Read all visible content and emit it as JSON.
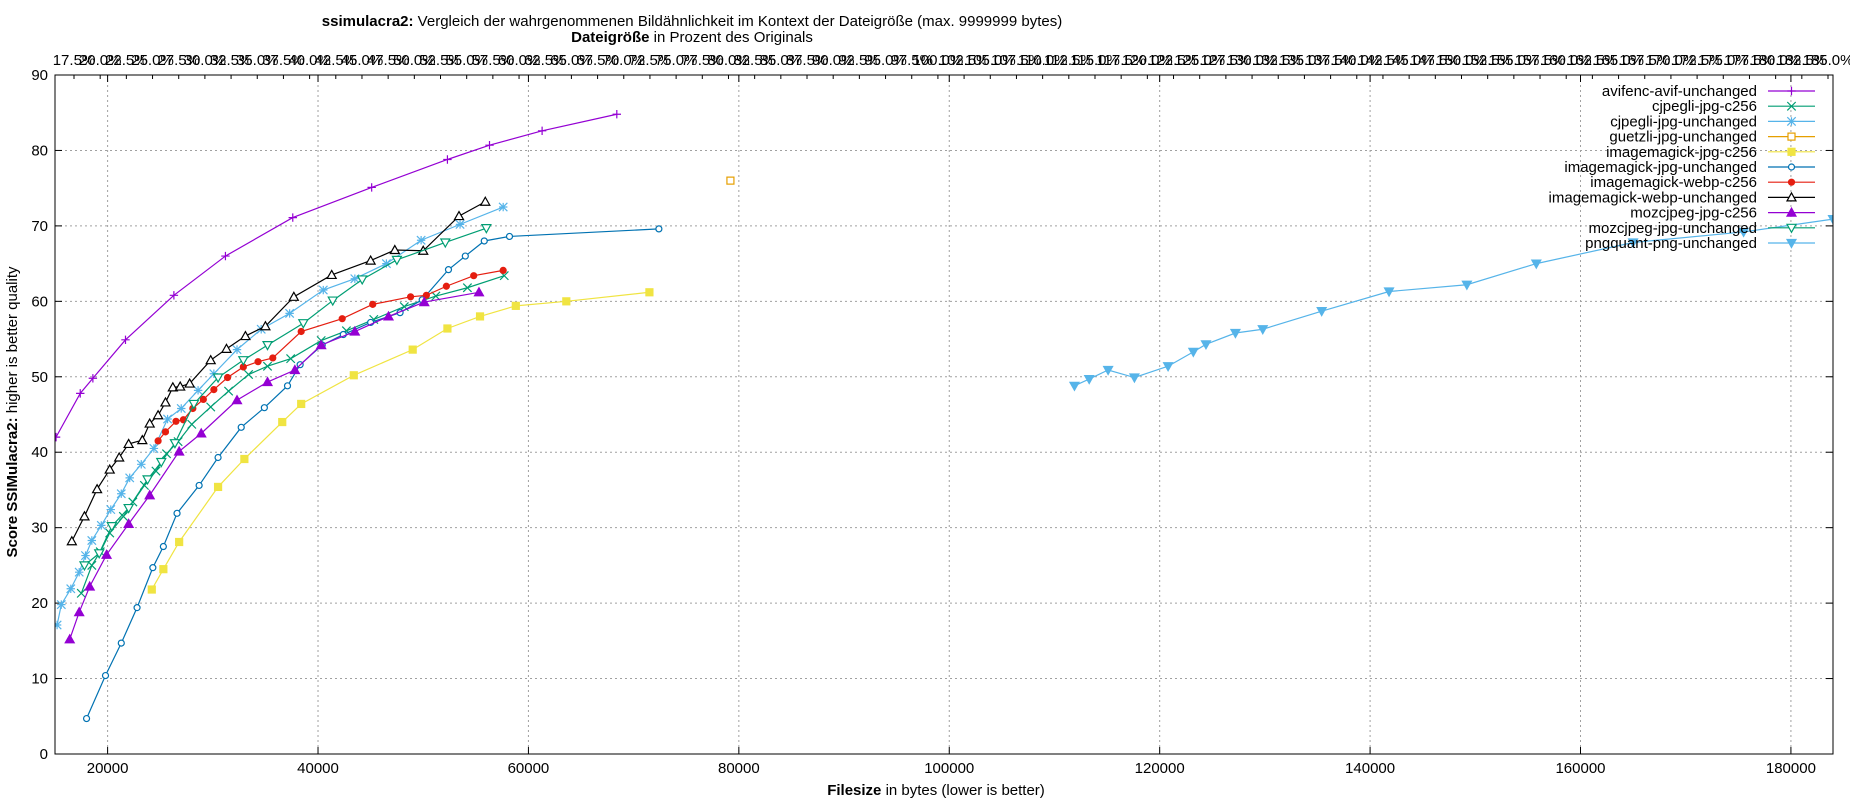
{
  "chart_data": {
    "type": "line",
    "title": {
      "bold": "ssimulacra2:",
      "rest": " Vergleich der wahrgenommenen Bildähnlichkeit im Kontext der Dateigröße (max. 9999999 bytes)"
    },
    "subtitle": {
      "bold": "Dateigröße",
      "rest": " in Prozent des Originals"
    },
    "xlabel": {
      "bold": "Filesize",
      "rest": " in bytes (lower is better)"
    },
    "ylabel": {
      "bold": "Score SSIMulacra2:",
      "rest": " higher is better quality"
    },
    "xlim": [
      15000,
      184000
    ],
    "ylim": [
      0,
      90
    ],
    "x_ticks": [
      "20000",
      "40000",
      "60000",
      "80000",
      "100000",
      "120000",
      "140000",
      "160000",
      "180000"
    ],
    "x_tick_values": [
      20000,
      40000,
      60000,
      80000,
      100000,
      120000,
      140000,
      160000,
      180000
    ],
    "y_ticks": [
      "0",
      "10",
      "20",
      "30",
      "40",
      "50",
      "60",
      "70",
      "80",
      "90"
    ],
    "y_tick_values": [
      0,
      10,
      20,
      30,
      40,
      50,
      60,
      70,
      80,
      90
    ],
    "top_ticks": [
      "17.5%",
      "20.0%",
      "22.5%",
      "25.0%",
      "27.5%",
      "30.0%",
      "32.5%",
      "35.0%",
      "37.5%",
      "40.0%",
      "42.5%",
      "45.0%",
      "47.5%",
      "50.0%",
      "52.5%",
      "55.0%",
      "57.5%",
      "60.0%",
      "62.5%",
      "65.0%",
      "67.5%",
      "70.0%",
      "72.5%",
      "75.0%",
      "77.5%",
      "80.0%",
      "82.5%",
      "85.0%",
      "87.5%",
      "90.0%",
      "92.5%",
      "95.0%",
      "97.5%",
      "100.0%",
      "102.5%",
      "105.0%",
      "107.5%",
      "110.0%",
      "112.5%",
      "115.0%",
      "117.5%",
      "120.0%",
      "122.5%",
      "125.0%",
      "127.5%",
      "130.0%",
      "132.5%",
      "135.0%",
      "137.5%",
      "140.0%",
      "142.5%",
      "145.0%",
      "147.5%",
      "150.0%",
      "152.5%",
      "155.0%",
      "157.5%",
      "160.0%",
      "162.5%",
      "165.0%",
      "167.5%",
      "170.0%",
      "172.5%",
      "175.0%",
      "177.5%",
      "180.0%",
      "182.5%",
      "185.0%"
    ],
    "grid": true,
    "legend_position": "top-right",
    "series": [
      {
        "name": "avifenc-avif-unchanged",
        "color": "#9400d3",
        "marker": "plus",
        "x": [
          15100,
          17400,
          18600,
          21700,
          26300,
          31200,
          37600,
          45100,
          52300,
          56300,
          61300,
          68400
        ],
        "y": [
          42.0,
          47.8,
          49.8,
          54.9,
          60.8,
          66.0,
          71.1,
          75.1,
          78.8,
          80.7,
          82.6,
          84.8
        ]
      },
      {
        "name": "cjpegli-jpg-c256",
        "color": "#009e73",
        "marker": "x",
        "x": [
          17500,
          18500,
          19300,
          20200,
          21500,
          22400,
          23500,
          24600,
          25600,
          26700,
          28000,
          29800,
          31500,
          33400,
          35200,
          37400,
          40300,
          42700,
          45300,
          48200,
          51200,
          54200,
          57700
        ],
        "y": [
          21.3,
          25.0,
          26.8,
          29.3,
          31.5,
          33.4,
          35.6,
          37.5,
          39.8,
          41.4,
          43.7,
          46.0,
          48.1,
          50.3,
          51.4,
          52.4,
          54.8,
          56.1,
          57.6,
          59.3,
          60.7,
          61.8,
          63.4
        ]
      },
      {
        "name": "cjpegli-jpg-unchanged",
        "color": "#56b4e9",
        "marker": "star",
        "x": [
          15200,
          15600,
          16500,
          17300,
          17900,
          18500,
          19400,
          20300,
          21300,
          22100,
          23200,
          24400,
          25700,
          27000,
          28600,
          30100,
          32300,
          34600,
          37300,
          40500,
          43500,
          46500,
          49800,
          53500,
          57600
        ],
        "y": [
          17.1,
          19.8,
          21.9,
          24.1,
          26.3,
          28.3,
          30.3,
          32.4,
          34.5,
          36.6,
          38.4,
          40.5,
          44.4,
          45.8,
          48.2,
          50.4,
          53.6,
          56.3,
          58.4,
          61.5,
          63.0,
          65.0,
          68.1,
          70.2,
          72.5
        ]
      },
      {
        "name": "guetzli-jpg-unchanged",
        "color": "#e69f00",
        "marker": "square-open",
        "x": [
          79200
        ],
        "y": [
          76.0
        ]
      },
      {
        "name": "imagemagick-jpg-c256",
        "color": "#f0e442",
        "marker": "square-filled",
        "x": [
          24200,
          25300,
          26800,
          30500,
          33000,
          36600,
          38400,
          43400,
          49000,
          52300,
          55400,
          58800,
          63600,
          71500
        ],
        "y": [
          21.8,
          24.5,
          28.1,
          35.4,
          39.1,
          44.0,
          46.4,
          50.2,
          53.6,
          56.4,
          58.0,
          59.4,
          60.0,
          61.2
        ]
      },
      {
        "name": "imagemagick-jpg-unchanged",
        "color": "#0072b2",
        "marker": "circle-open",
        "x": [
          18000,
          19800,
          21300,
          22800,
          24300,
          25300,
          26600,
          28700,
          30500,
          32700,
          34900,
          37100,
          38300,
          40400,
          42400,
          45000,
          47800,
          49900,
          52400,
          54000,
          55800,
          58200,
          72400
        ],
        "y": [
          4.7,
          10.4,
          14.7,
          19.4,
          24.7,
          27.5,
          31.9,
          35.6,
          39.3,
          43.3,
          45.9,
          48.8,
          51.6,
          54.2,
          55.6,
          57.2,
          58.5,
          60.2,
          64.2,
          66.0,
          68.0,
          68.6,
          69.6
        ]
      },
      {
        "name": "imagemagick-webp-c256",
        "color": "#e51e10",
        "marker": "circle-filled",
        "x": [
          24800,
          25500,
          26500,
          27200,
          28100,
          29100,
          30100,
          31400,
          32900,
          34300,
          35700,
          38400,
          42300,
          45200,
          48800,
          50300,
          52200,
          54800,
          57600
        ],
        "y": [
          41.5,
          42.7,
          44.1,
          44.3,
          45.8,
          47.0,
          48.3,
          49.9,
          51.3,
          52.0,
          52.5,
          56.0,
          57.7,
          59.6,
          60.6,
          60.8,
          62.0,
          63.4,
          64.1
        ]
      },
      {
        "name": "imagemagick-webp-unchanged",
        "color": "#000000",
        "marker": "triangle-open",
        "x": [
          16600,
          17800,
          19000,
          20200,
          21100,
          22000,
          23300,
          24000,
          24800,
          25500,
          26200,
          26900,
          27800,
          29800,
          31300,
          33100,
          35000,
          37700,
          41300,
          45000,
          47300,
          50000,
          53400,
          55900
        ],
        "y": [
          28.2,
          31.5,
          35.1,
          37.7,
          39.3,
          41.1,
          41.6,
          43.8,
          44.9,
          46.6,
          48.6,
          48.7,
          49.1,
          52.2,
          53.7,
          55.4,
          56.7,
          60.6,
          63.5,
          65.4,
          66.8,
          66.7,
          71.3,
          73.2
        ]
      },
      {
        "name": "mozcjpeg-jpg-c256",
        "color": "#9400d3",
        "marker": "triangle-filled",
        "x": [
          16400,
          17300,
          18300,
          19900,
          22000,
          24000,
          26800,
          28900,
          32300,
          35200,
          37800,
          40300,
          43500,
          46700,
          50100,
          55300
        ],
        "y": [
          15.2,
          18.8,
          22.2,
          26.4,
          30.5,
          34.3,
          40.1,
          42.5,
          46.9,
          49.3,
          50.9,
          54.2,
          56.0,
          58.0,
          59.9,
          61.2
        ]
      },
      {
        "name": "mozcjpeg-jpg-unchanged",
        "color": "#009e73",
        "marker": "triangle-down-open",
        "x": [
          17800,
          19200,
          20400,
          22000,
          23800,
          25100,
          26400,
          28200,
          30500,
          32900,
          35200,
          38600,
          41400,
          44200,
          47500,
          52100,
          56000
        ],
        "y": [
          25.0,
          26.6,
          30.2,
          32.6,
          36.4,
          38.7,
          41.2,
          46.4,
          49.9,
          52.2,
          54.2,
          57.1,
          60.1,
          62.9,
          65.5,
          67.8,
          69.7
        ]
      },
      {
        "name": "pngquant-png-unchanged",
        "color": "#56b4e9",
        "marker": "triangle-down-filled",
        "x": [
          111900,
          113300,
          115100,
          117600,
          120800,
          123200,
          124400,
          127200,
          129800,
          135400,
          141800,
          149200,
          155800,
          165000,
          175500,
          184000
        ],
        "y": [
          48.8,
          49.7,
          50.9,
          49.9,
          51.4,
          53.3,
          54.3,
          55.8,
          56.3,
          58.7,
          61.3,
          62.2,
          65.0,
          67.8,
          69.2,
          70.9
        ]
      }
    ]
  }
}
